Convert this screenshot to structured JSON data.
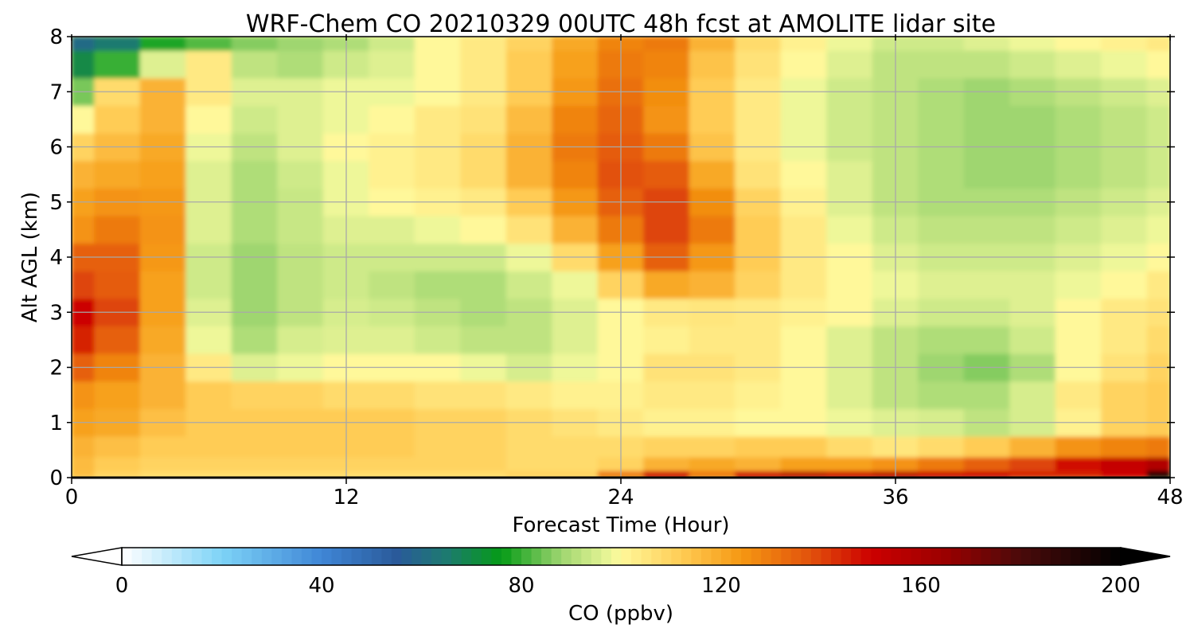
{
  "chart_data": {
    "type": "heatmap",
    "title": "WRF-Chem CO  20210329 00UTC 48h fcst at AMOLITE lidar site",
    "xlabel": "Forecast Time (Hour)",
    "ylabel": "Alt AGL (km)",
    "xlim": [
      0,
      48
    ],
    "ylim": [
      0,
      8
    ],
    "xticks": [
      "0",
      "12",
      "24",
      "36",
      "48"
    ],
    "yticks": [
      "0",
      "1",
      "2",
      "3",
      "4",
      "5",
      "6",
      "7",
      "8"
    ],
    "grid": true,
    "x_step_hours": 2,
    "y_levels_km": [
      0,
      0.25,
      0.5,
      1,
      1.5,
      2,
      2.5,
      3,
      3.5,
      4,
      4.5,
      5,
      5.5,
      6,
      6.5,
      7,
      7.5,
      8
    ],
    "values_ppbv": [
      [
        115,
        110,
        108,
        108,
        108,
        108,
        108,
        108,
        108,
        108,
        110,
        110,
        130,
        150,
        130,
        150,
        155,
        150,
        155,
        150,
        150,
        145,
        145,
        150,
        195
      ],
      [
        116,
        112,
        110,
        110,
        110,
        110,
        110,
        110,
        110,
        110,
        108,
        108,
        110,
        118,
        120,
        118,
        122,
        122,
        125,
        130,
        135,
        140,
        148,
        152,
        158
      ],
      [
        118,
        115,
        112,
        112,
        112,
        112,
        112,
        112,
        110,
        110,
        108,
        108,
        108,
        110,
        110,
        112,
        112,
        108,
        105,
        108,
        112,
        118,
        125,
        128,
        130
      ],
      [
        122,
        120,
        115,
        112,
        112,
        112,
        112,
        112,
        110,
        110,
        108,
        106,
        104,
        102,
        102,
        100,
        100,
        98,
        96,
        95,
        92,
        95,
        102,
        110,
        112
      ],
      [
        125,
        122,
        118,
        112,
        110,
        110,
        108,
        108,
        106,
        106,
        104,
        102,
        102,
        104,
        104,
        102,
        100,
        96,
        92,
        90,
        90,
        95,
        104,
        110,
        112
      ],
      [
        135,
        128,
        118,
        104,
        96,
        98,
        100,
        100,
        100,
        98,
        95,
        98,
        100,
        106,
        106,
        104,
        100,
        96,
        92,
        88,
        86,
        90,
        100,
        106,
        110
      ],
      [
        145,
        135,
        120,
        98,
        90,
        95,
        96,
        96,
        94,
        92,
        92,
        96,
        100,
        102,
        104,
        104,
        100,
        96,
        92,
        90,
        90,
        94,
        100,
        104,
        108
      ],
      [
        150,
        140,
        122,
        96,
        88,
        92,
        95,
        94,
        92,
        90,
        92,
        96,
        100,
        104,
        105,
        104,
        102,
        100,
        96,
        94,
        94,
        96,
        100,
        104,
        106
      ],
      [
        140,
        136,
        122,
        94,
        88,
        92,
        94,
        92,
        90,
        90,
        94,
        98,
        110,
        120,
        118,
        110,
        104,
        100,
        98,
        96,
        96,
        96,
        98,
        100,
        104
      ],
      [
        135,
        135,
        124,
        94,
        88,
        92,
        94,
        94,
        94,
        94,
        98,
        108,
        122,
        135,
        124,
        112,
        104,
        100,
        96,
        94,
        94,
        94,
        96,
        98,
        100
      ],
      [
        125,
        130,
        125,
        96,
        90,
        93,
        96,
        96,
        98,
        100,
        106,
        118,
        130,
        140,
        130,
        112,
        104,
        98,
        94,
        92,
        92,
        92,
        94,
        96,
        98
      ],
      [
        122,
        125,
        124,
        96,
        90,
        93,
        98,
        100,
        102,
        104,
        112,
        124,
        135,
        140,
        126,
        110,
        102,
        96,
        92,
        90,
        90,
        90,
        92,
        94,
        96
      ],
      [
        118,
        120,
        122,
        96,
        90,
        94,
        98,
        102,
        104,
        108,
        118,
        128,
        138,
        136,
        120,
        106,
        100,
        96,
        92,
        90,
        88,
        88,
        90,
        92,
        94
      ],
      [
        110,
        116,
        120,
        98,
        92,
        96,
        100,
        102,
        104,
        108,
        118,
        130,
        136,
        130,
        114,
        104,
        98,
        94,
        92,
        90,
        88,
        88,
        90,
        92,
        94
      ],
      [
        100,
        112,
        118,
        100,
        94,
        96,
        98,
        100,
        104,
        106,
        116,
        128,
        134,
        125,
        112,
        104,
        98,
        94,
        92,
        90,
        88,
        88,
        90,
        92,
        94
      ],
      [
        85,
        108,
        118,
        104,
        96,
        96,
        98,
        98,
        100,
        104,
        112,
        124,
        132,
        126,
        112,
        104,
        98,
        94,
        92,
        90,
        88,
        90,
        92,
        94,
        96
      ],
      [
        70,
        80,
        96,
        104,
        92,
        90,
        94,
        96,
        100,
        104,
        112,
        122,
        130,
        128,
        114,
        106,
        100,
        96,
        92,
        92,
        92,
        94,
        96,
        98,
        100
      ],
      [
        60,
        65,
        78,
        82,
        86,
        88,
        90,
        94,
        100,
        104,
        110,
        120,
        128,
        130,
        118,
        108,
        102,
        98,
        94,
        94,
        96,
        98,
        100,
        102,
        104
      ]
    ],
    "colorbar": {
      "label": "CO  (ppbv)",
      "min": 0,
      "max": 200,
      "ticks": [
        "0",
        "40",
        "80",
        "120",
        "160",
        "200"
      ],
      "extend": "both",
      "stops": [
        {
          "v": 0,
          "c": "#ffffff"
        },
        {
          "v": 20,
          "c": "#7dd3f7"
        },
        {
          "v": 40,
          "c": "#3f86d6"
        },
        {
          "v": 55,
          "c": "#2a5a9a"
        },
        {
          "v": 65,
          "c": "#1d7a70"
        },
        {
          "v": 76,
          "c": "#059b16"
        },
        {
          "v": 88,
          "c": "#9fd670"
        },
        {
          "v": 98,
          "c": "#eef799"
        },
        {
          "v": 100,
          "c": "#fff89a"
        },
        {
          "v": 112,
          "c": "#ffcc55"
        },
        {
          "v": 124,
          "c": "#f59812"
        },
        {
          "v": 138,
          "c": "#e2510c"
        },
        {
          "v": 150,
          "c": "#cc0000"
        },
        {
          "v": 165,
          "c": "#9a0000"
        },
        {
          "v": 180,
          "c": "#4a0a0a"
        },
        {
          "v": 200,
          "c": "#000000"
        }
      ]
    }
  }
}
